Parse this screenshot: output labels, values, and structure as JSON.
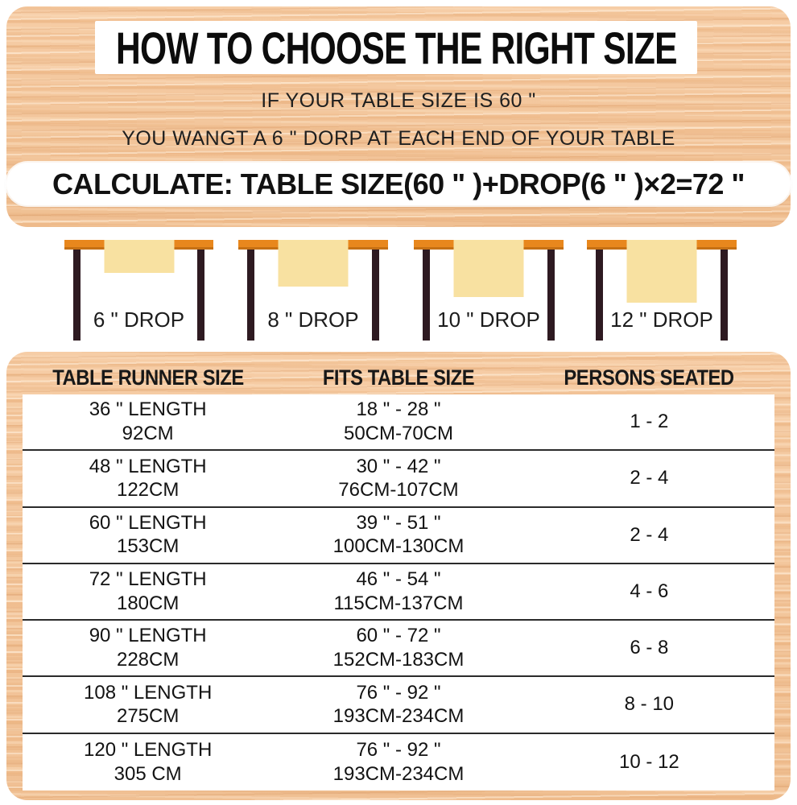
{
  "header": {
    "title": "HOW TO CHOOSE THE RIGHT SIZE",
    "line1": "IF YOUR TABLE SIZE IS 60 \"",
    "line2": "YOU WANGT A 6 \" DORP AT EACH END OF YOUR TABLE",
    "calculation": "CALCULATE:  TABLE SIZE(60 \" )+DROP(6 \" )×2=72 \""
  },
  "illustrations": [
    {
      "label": "6 \" DROP"
    },
    {
      "label": "8 \" DROP"
    },
    {
      "label": "10 \" DROP"
    },
    {
      "label": "12 \" DROP"
    }
  ],
  "size_table": {
    "headers": [
      "TABLE RUNNER SIZE",
      "FITS TABLE SIZE",
      "PERSONS SEATED"
    ],
    "rows": [
      {
        "runner_in": "36 \" LENGTH",
        "runner_cm": "92CM",
        "fits_in": "18 \" - 28 \"",
        "fits_cm": "50CM-70CM",
        "persons": "1 - 2"
      },
      {
        "runner_in": "48 \" LENGTH",
        "runner_cm": "122CM",
        "fits_in": "30 \" - 42 \"",
        "fits_cm": "76CM-107CM",
        "persons": "2 - 4"
      },
      {
        "runner_in": "60 \" LENGTH",
        "runner_cm": "153CM",
        "fits_in": "39 \" - 51 \"",
        "fits_cm": "100CM-130CM",
        "persons": "2 - 4"
      },
      {
        "runner_in": "72 \" LENGTH",
        "runner_cm": "180CM",
        "fits_in": "46 \" - 54 \"",
        "fits_cm": "115CM-137CM",
        "persons": "4 - 6"
      },
      {
        "runner_in": "90 \" LENGTH",
        "runner_cm": "228CM",
        "fits_in": "60 \" - 72 \"",
        "fits_cm": "152CM-183CM",
        "persons": "6 - 8"
      },
      {
        "runner_in": "108 \" LENGTH",
        "runner_cm": "275CM",
        "fits_in": "76 \" - 92 \"",
        "fits_cm": "193CM-234CM",
        "persons": "8 - 10"
      },
      {
        "runner_in": "120 \" LENGTH",
        "runner_cm": "305 CM",
        "fits_in": "76 \" - 92 \"",
        "fits_cm": "193CM-234CM",
        "persons": "10 - 12"
      }
    ]
  },
  "colors": {
    "wood_base": "#f3c79e",
    "tabletop_orange": "#e8871d",
    "runner_yellow": "#f8e1a1",
    "leg_dark": "#2e1a21",
    "text_dark": "#131313"
  }
}
